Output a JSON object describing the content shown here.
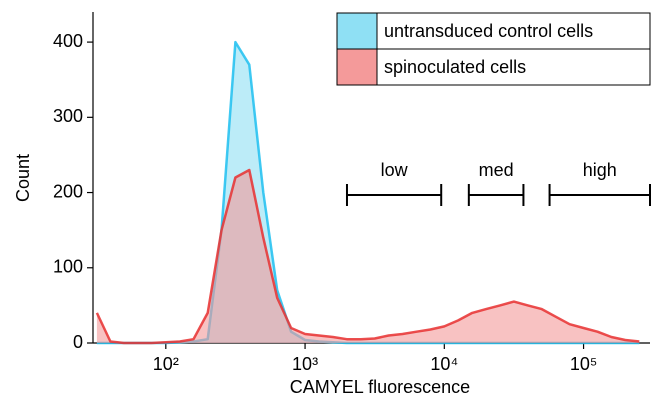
{
  "chart_data": {
    "type": "area",
    "xlabel": "CAMYEL fluorescence",
    "ylabel": "Count",
    "xscale": "log",
    "legend": "upper right",
    "x": [
      32,
      40,
      50,
      63,
      79,
      100,
      126,
      158,
      200,
      251,
      316,
      398,
      501,
      631,
      794,
      1000,
      1259,
      1585,
      1995,
      2512,
      3162,
      3981,
      5012,
      6310,
      7943,
      10000,
      12589,
      15849,
      19953,
      25119,
      31623,
      39811,
      50119,
      63096,
      79433,
      100000,
      125893,
      158489,
      199526,
      251189
    ],
    "series": [
      {
        "name": "untransduced control cells",
        "color": "#1ec0f0",
        "fill": "#8fe0f4",
        "values": [
          0,
          0,
          0,
          0,
          0,
          0,
          1,
          2,
          5,
          150,
          400,
          370,
          200,
          70,
          15,
          4,
          2,
          1,
          0,
          0,
          0,
          0,
          0,
          0,
          0,
          0,
          0,
          0,
          0,
          0,
          0,
          0,
          0,
          0,
          0,
          0,
          0,
          0,
          0,
          0
        ]
      },
      {
        "name": "spinoculated cells",
        "color": "#e83030",
        "fill": "#f49a9a",
        "values": [
          40,
          2,
          0,
          0,
          0,
          1,
          2,
          5,
          40,
          150,
          220,
          230,
          140,
          60,
          20,
          12,
          10,
          8,
          5,
          5,
          6,
          10,
          12,
          15,
          18,
          22,
          30,
          40,
          45,
          50,
          55,
          50,
          45,
          35,
          25,
          20,
          15,
          8,
          4,
          2
        ]
      }
    ],
    "gates": [
      {
        "label": "low",
        "range": [
          2000,
          9500
        ]
      },
      {
        "label": "med",
        "range": [
          15000,
          37000
        ]
      },
      {
        "label": "high",
        "range": [
          57000,
          300000
        ]
      }
    ],
    "xlim": [
      30,
      300000
    ],
    "ylim": [
      0,
      440
    ],
    "xticks": [
      {
        "value": 100,
        "label": "10²"
      },
      {
        "value": 1000,
        "label": "10³"
      },
      {
        "value": 10000,
        "label": "10⁴"
      },
      {
        "value": 100000,
        "label": "10⁵"
      }
    ],
    "yticks": [
      0,
      100,
      200,
      300,
      400
    ]
  }
}
